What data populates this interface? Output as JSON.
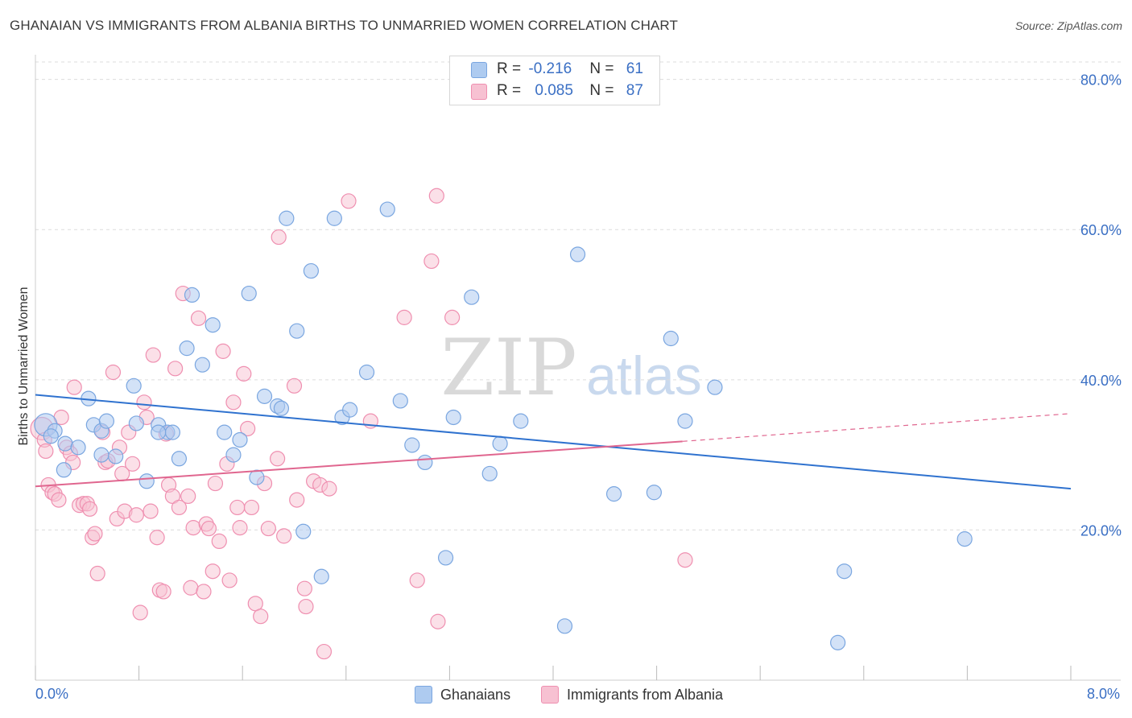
{
  "title": "GHANAIAN VS IMMIGRANTS FROM ALBANIA BIRTHS TO UNMARRIED WOMEN CORRELATION CHART",
  "source": "Source: ZipAtlas.com",
  "watermark": {
    "zip": "ZIP",
    "atlas": "atlas"
  },
  "legend": {
    "ghanaians": {
      "r_label": "R = ",
      "r_value": "-0.216",
      "n_label": "N = ",
      "n_value": "61"
    },
    "albania": {
      "r_label": "R = ",
      "r_value": "0.085",
      "n_label": "N = ",
      "n_value": "87"
    }
  },
  "bottom_legend": {
    "ghanaians": "Ghanaians",
    "albania": "Immigrants from Albania"
  },
  "colors": {
    "blue_fill": "#aecbf0",
    "blue_stroke": "#7aa6e0",
    "blue_line": "#2f72cf",
    "pink_fill": "#f7c1d2",
    "pink_stroke": "#ef8fb0",
    "pink_line": "#e0668f",
    "axis_text": "#3a6fc4",
    "grid": "#dcdcdc"
  },
  "chart_data": {
    "type": "scatter",
    "title": "GHANAIAN VS IMMIGRANTS FROM ALBANIA BIRTHS TO UNMARRIED WOMEN CORRELATION CHART",
    "xlabel": "",
    "ylabel": "Births to Unmarried Women",
    "xlim": [
      0,
      8.0
    ],
    "ylim": [
      0,
      82
    ],
    "x_tick_labels": [
      "0.0%",
      "8.0%"
    ],
    "y_ticks": [
      20,
      40,
      60,
      80
    ],
    "y_tick_labels": [
      "20.0%",
      "40.0%",
      "60.0%",
      "80.0%"
    ],
    "series": [
      {
        "name": "Ghanaians",
        "trend": {
          "x0": 0.0,
          "y0": 38.0,
          "x1": 8.0,
          "y1": 25.5
        },
        "points": [
          {
            "x": 0.08,
            "y": 34.0,
            "big": true
          },
          {
            "x": 0.15,
            "y": 33.2
          },
          {
            "x": 0.23,
            "y": 31.5
          },
          {
            "x": 0.33,
            "y": 31.0
          },
          {
            "x": 0.22,
            "y": 28.0
          },
          {
            "x": 0.41,
            "y": 37.5
          },
          {
            "x": 0.45,
            "y": 34.0
          },
          {
            "x": 0.51,
            "y": 33.2
          },
          {
            "x": 0.51,
            "y": 30.0
          },
          {
            "x": 0.55,
            "y": 34.5
          },
          {
            "x": 0.62,
            "y": 29.8
          },
          {
            "x": 0.76,
            "y": 39.2
          },
          {
            "x": 0.78,
            "y": 34.2
          },
          {
            "x": 0.86,
            "y": 26.5
          },
          {
            "x": 0.95,
            "y": 34.0
          },
          {
            "x": 1.02,
            "y": 33.0
          },
          {
            "x": 1.06,
            "y": 33.0
          },
          {
            "x": 1.11,
            "y": 29.5
          },
          {
            "x": 1.17,
            "y": 44.2
          },
          {
            "x": 1.21,
            "y": 51.3
          },
          {
            "x": 1.29,
            "y": 42.0
          },
          {
            "x": 1.37,
            "y": 47.3
          },
          {
            "x": 1.46,
            "y": 33.0
          },
          {
            "x": 1.53,
            "y": 30.0
          },
          {
            "x": 1.58,
            "y": 32.0
          },
          {
            "x": 1.65,
            "y": 51.5
          },
          {
            "x": 1.71,
            "y": 27.0
          },
          {
            "x": 1.77,
            "y": 37.8
          },
          {
            "x": 1.87,
            "y": 36.5
          },
          {
            "x": 1.94,
            "y": 61.5
          },
          {
            "x": 2.02,
            "y": 46.5
          },
          {
            "x": 2.07,
            "y": 19.8
          },
          {
            "x": 2.13,
            "y": 54.5
          },
          {
            "x": 2.21,
            "y": 13.8
          },
          {
            "x": 2.31,
            "y": 61.5
          },
          {
            "x": 2.37,
            "y": 35.0
          },
          {
            "x": 2.43,
            "y": 36.0
          },
          {
            "x": 2.56,
            "y": 41.0
          },
          {
            "x": 2.72,
            "y": 62.7
          },
          {
            "x": 2.82,
            "y": 37.2
          },
          {
            "x": 2.91,
            "y": 31.3
          },
          {
            "x": 3.01,
            "y": 29.0
          },
          {
            "x": 3.17,
            "y": 16.3
          },
          {
            "x": 3.23,
            "y": 35.0
          },
          {
            "x": 3.37,
            "y": 51.0
          },
          {
            "x": 3.51,
            "y": 27.5
          },
          {
            "x": 3.59,
            "y": 31.5
          },
          {
            "x": 3.75,
            "y": 34.5
          },
          {
            "x": 4.09,
            "y": 7.2
          },
          {
            "x": 4.19,
            "y": 56.7
          },
          {
            "x": 4.47,
            "y": 24.8
          },
          {
            "x": 4.78,
            "y": 25.0
          },
          {
            "x": 4.91,
            "y": 45.5
          },
          {
            "x": 5.02,
            "y": 34.5
          },
          {
            "x": 5.25,
            "y": 39.0
          },
          {
            "x": 6.2,
            "y": 5.0
          },
          {
            "x": 6.25,
            "y": 14.5
          },
          {
            "x": 7.18,
            "y": 18.8
          },
          {
            "x": 0.12,
            "y": 32.5
          },
          {
            "x": 0.95,
            "y": 33.0
          },
          {
            "x": 1.9,
            "y": 36.2
          }
        ]
      },
      {
        "name": "Immigrants from Albania",
        "trend": {
          "x0": 0.0,
          "y0": 25.8,
          "x1": 5.0,
          "y1": 31.8,
          "dash_x1": 8.0,
          "dash_y1": 35.5
        },
        "points": [
          {
            "x": 0.05,
            "y": 33.5,
            "big": true
          },
          {
            "x": 0.07,
            "y": 32.0
          },
          {
            "x": 0.08,
            "y": 30.5
          },
          {
            "x": 0.1,
            "y": 26.0
          },
          {
            "x": 0.13,
            "y": 25.0
          },
          {
            "x": 0.15,
            "y": 24.8
          },
          {
            "x": 0.18,
            "y": 24.0
          },
          {
            "x": 0.2,
            "y": 35.0
          },
          {
            "x": 0.24,
            "y": 31.0
          },
          {
            "x": 0.27,
            "y": 30.2
          },
          {
            "x": 0.29,
            "y": 29.0
          },
          {
            "x": 0.3,
            "y": 39.0
          },
          {
            "x": 0.34,
            "y": 23.3
          },
          {
            "x": 0.37,
            "y": 23.5
          },
          {
            "x": 0.4,
            "y": 23.5
          },
          {
            "x": 0.42,
            "y": 22.8
          },
          {
            "x": 0.44,
            "y": 19.0
          },
          {
            "x": 0.46,
            "y": 19.5
          },
          {
            "x": 0.48,
            "y": 14.2
          },
          {
            "x": 0.52,
            "y": 33.0
          },
          {
            "x": 0.54,
            "y": 29.0
          },
          {
            "x": 0.56,
            "y": 29.2
          },
          {
            "x": 0.6,
            "y": 41.0
          },
          {
            "x": 0.63,
            "y": 21.5
          },
          {
            "x": 0.65,
            "y": 31.0
          },
          {
            "x": 0.67,
            "y": 27.5
          },
          {
            "x": 0.69,
            "y": 22.5
          },
          {
            "x": 0.72,
            "y": 33.0
          },
          {
            "x": 0.75,
            "y": 28.8
          },
          {
            "x": 0.78,
            "y": 22.0
          },
          {
            "x": 0.81,
            "y": 9.0
          },
          {
            "x": 0.84,
            "y": 37.0
          },
          {
            "x": 0.86,
            "y": 35.0
          },
          {
            "x": 0.89,
            "y": 22.5
          },
          {
            "x": 0.91,
            "y": 43.3
          },
          {
            "x": 0.94,
            "y": 19.0
          },
          {
            "x": 0.96,
            "y": 12.0
          },
          {
            "x": 0.99,
            "y": 11.8
          },
          {
            "x": 1.01,
            "y": 32.8
          },
          {
            "x": 1.03,
            "y": 26.0
          },
          {
            "x": 1.06,
            "y": 24.5
          },
          {
            "x": 1.08,
            "y": 41.5
          },
          {
            "x": 1.11,
            "y": 23.0
          },
          {
            "x": 1.14,
            "y": 51.5
          },
          {
            "x": 1.18,
            "y": 24.5
          },
          {
            "x": 1.2,
            "y": 12.3
          },
          {
            "x": 1.22,
            "y": 20.3
          },
          {
            "x": 1.26,
            "y": 48.2
          },
          {
            "x": 1.3,
            "y": 11.8
          },
          {
            "x": 1.32,
            "y": 20.8
          },
          {
            "x": 1.34,
            "y": 20.2
          },
          {
            "x": 1.37,
            "y": 14.5
          },
          {
            "x": 1.39,
            "y": 26.2
          },
          {
            "x": 1.42,
            "y": 18.5
          },
          {
            "x": 1.45,
            "y": 43.8
          },
          {
            "x": 1.48,
            "y": 28.8
          },
          {
            "x": 1.5,
            "y": 13.3
          },
          {
            "x": 1.53,
            "y": 37.0
          },
          {
            "x": 1.56,
            "y": 23.0
          },
          {
            "x": 1.58,
            "y": 20.3
          },
          {
            "x": 1.61,
            "y": 40.8
          },
          {
            "x": 1.64,
            "y": 33.5
          },
          {
            "x": 1.67,
            "y": 23.0
          },
          {
            "x": 1.7,
            "y": 10.2
          },
          {
            "x": 1.74,
            "y": 8.5
          },
          {
            "x": 1.77,
            "y": 26.2
          },
          {
            "x": 1.8,
            "y": 20.2
          },
          {
            "x": 1.87,
            "y": 29.5
          },
          {
            "x": 1.88,
            "y": 59.0
          },
          {
            "x": 1.92,
            "y": 19.2
          },
          {
            "x": 2.0,
            "y": 39.2
          },
          {
            "x": 2.02,
            "y": 24.0
          },
          {
            "x": 2.08,
            "y": 12.2
          },
          {
            "x": 2.09,
            "y": 9.8
          },
          {
            "x": 2.15,
            "y": 26.5
          },
          {
            "x": 2.2,
            "y": 26.0
          },
          {
            "x": 2.23,
            "y": 3.8
          },
          {
            "x": 2.27,
            "y": 25.5
          },
          {
            "x": 2.42,
            "y": 63.8
          },
          {
            "x": 2.59,
            "y": 34.5
          },
          {
            "x": 2.85,
            "y": 48.3
          },
          {
            "x": 2.95,
            "y": 13.3
          },
          {
            "x": 3.06,
            "y": 55.8
          },
          {
            "x": 3.1,
            "y": 64.5
          },
          {
            "x": 3.11,
            "y": 7.8
          },
          {
            "x": 3.22,
            "y": 48.3
          },
          {
            "x": 5.02,
            "y": 16.0
          }
        ]
      }
    ]
  }
}
